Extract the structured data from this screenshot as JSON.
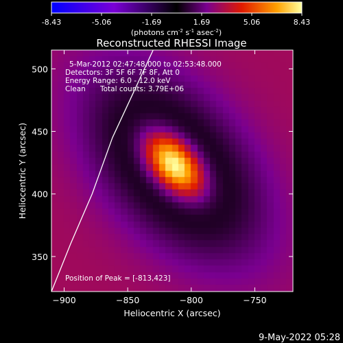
{
  "chart_data": {
    "type": "heatmap",
    "title": "Reconstructed RHESSI Image",
    "xlabel": "Heliocentric X (arcsec)",
    "ylabel": "Heliocentric Y (arcsec)",
    "xlim": [
      -910,
      -720
    ],
    "ylim": [
      322,
      515
    ],
    "xticks": [
      -900,
      -850,
      -800,
      -750
    ],
    "yticks": [
      350,
      400,
      450,
      500
    ],
    "colorbar": {
      "ticks": [
        "-8.43",
        "-5.06",
        "-1.69",
        "1.69",
        "5.06",
        "8.43"
      ],
      "units": "(photons cm",
      "units_exp1": "-2",
      "units_mid": " s",
      "units_exp2": "-1",
      "units_end": " asec",
      "units_exp3": "-2",
      "units_close": ")",
      "range": [
        -8.43,
        8.43
      ],
      "colors": {
        "neg_start": "#0000ff",
        "neg_mid": "#7a00d6",
        "neg_end": "#000000",
        "pos_0": "#000000",
        "pos_1": "#7a0090",
        "pos_2": "#e01a00",
        "pos_3": "#ffa000",
        "pos_4": "#ffffa0"
      }
    },
    "source": {
      "peak": [
        -813,
        423
      ],
      "peak_value": 8.43,
      "sigma_major": 22,
      "sigma_minor": 13,
      "angle_deg": -50
    },
    "background_value": 0.35,
    "limb_curve": [
      [
        -910,
        322
      ],
      [
        -895,
        360
      ],
      [
        -878,
        400
      ],
      [
        -862,
        445
      ],
      [
        -846,
        480
      ],
      [
        -830,
        515
      ]
    ],
    "annotations": {
      "time_range": "5-Mar-2012 02:47:48.000 to 02:53:48.000",
      "detectors": "Detectors: 3F 5F 6F 7F 8F, Att 0",
      "energy": "Energy Range: 6.0 - 12.0 keV",
      "clean_label": "Clean",
      "total_counts": "Total counts: 3.79E+06",
      "peak_position": "Position of Peak = [-813,423]"
    }
  },
  "footer_date": "9-May-2022 05:28"
}
